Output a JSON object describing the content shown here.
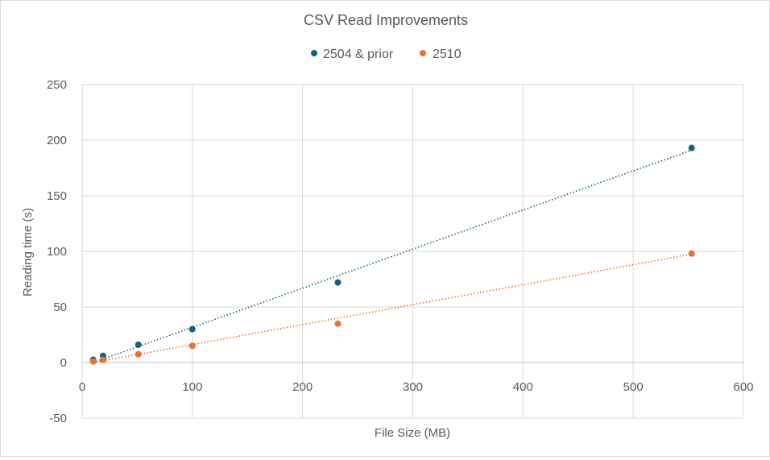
{
  "chart_data": {
    "type": "scatter",
    "title": "CSV Read Improvements",
    "xlabel": "File Size (MB)",
    "ylabel": "Reading time (s)",
    "xlim": [
      0,
      600
    ],
    "ylim": [
      -50,
      250
    ],
    "x_ticks": [
      0,
      100,
      200,
      300,
      400,
      500,
      600
    ],
    "y_ticks": [
      -50,
      0,
      50,
      100,
      150,
      200,
      250
    ],
    "grid": true,
    "legend_position": "top",
    "series": [
      {
        "name": "2504 & prior",
        "color": "#156082",
        "x": [
          10,
          19,
          51,
          100,
          232,
          553
        ],
        "y": [
          2.5,
          6,
          16,
          30,
          72,
          193
        ],
        "trendline": {
          "type": "linear",
          "style": "dotted",
          "x_range": [
            10,
            553
          ],
          "y_range": [
            0,
            191
          ]
        }
      },
      {
        "name": "2510",
        "color": "#E97132",
        "x": [
          10,
          19,
          51,
          100,
          232,
          553
        ],
        "y": [
          1,
          2.5,
          7.5,
          15,
          35,
          98
        ],
        "trendline": {
          "type": "linear",
          "style": "dotted",
          "x_range": [
            10,
            553
          ],
          "y_range": [
            0,
            97.5
          ]
        }
      }
    ]
  }
}
